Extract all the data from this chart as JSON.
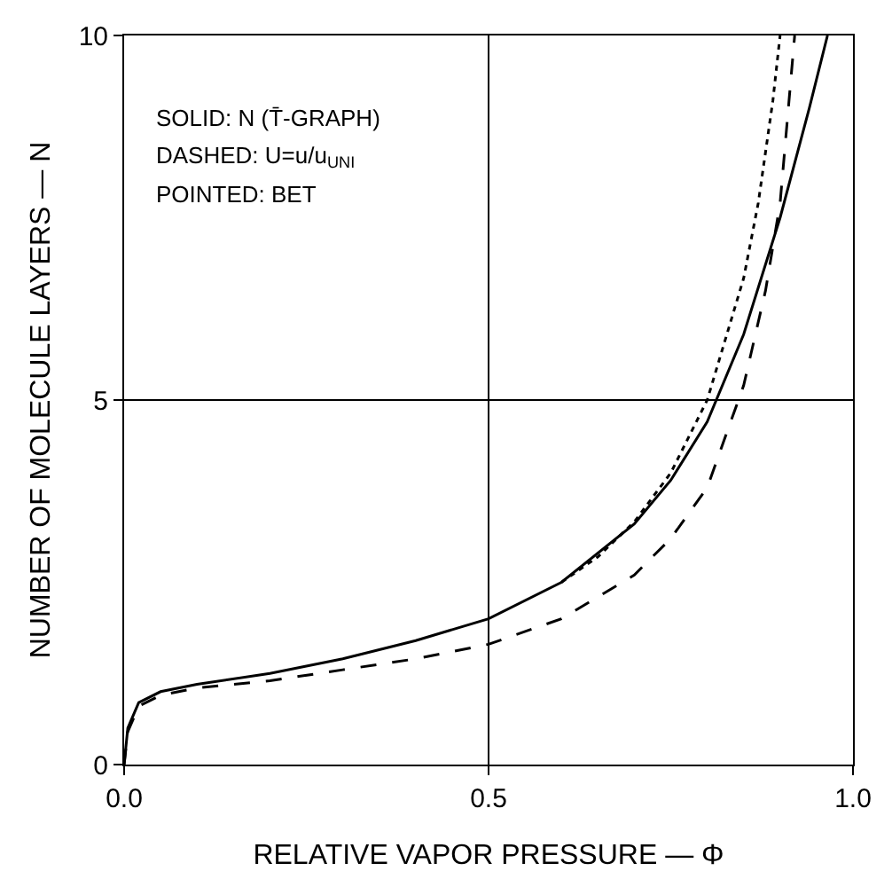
{
  "chart_data": {
    "type": "line",
    "xlabel": "RELATIVE VAPOR PRESSURE — Φ",
    "ylabel": "NUMBER OF MOLECULE LAYERS — N",
    "annotations": [
      "SOLID: N (T̄-GRAPH)",
      "DASHED: U=u/u$_{UNI}$",
      "POINTED: BET"
    ],
    "xlim": [
      0,
      1
    ],
    "ylim": [
      0,
      10
    ],
    "xticks": [
      {
        "value": 0,
        "label": "0.0"
      },
      {
        "value": 0.5,
        "label": "0.5"
      },
      {
        "value": 1,
        "label": "1.0"
      }
    ],
    "yticks": [
      0,
      5,
      10
    ],
    "grid": true,
    "marker": "none",
    "series": [
      {
        "color": "#000000",
        "line_style": "solid",
        "x": [
          0,
          0.005,
          0.02,
          0.05,
          0.1,
          0.2,
          0.3,
          0.4,
          0.5,
          0.6,
          0.7,
          0.75,
          0.8,
          0.85,
          0.9,
          0.94,
          0.965
        ],
        "values": [
          0,
          0.5,
          0.85,
          1.0,
          1.1,
          1.25,
          1.45,
          1.7,
          2.0,
          2.5,
          3.3,
          3.9,
          4.7,
          5.9,
          7.5,
          9.0,
          10
        ]
      },
      {
        "color": "#000000",
        "line_style": "dashed",
        "x": [
          0,
          0.005,
          0.02,
          0.05,
          0.1,
          0.2,
          0.3,
          0.4,
          0.5,
          0.6,
          0.7,
          0.75,
          0.8,
          0.85,
          0.88,
          0.9,
          0.92
        ],
        "values": [
          0,
          0.45,
          0.8,
          0.95,
          1.05,
          1.15,
          1.3,
          1.45,
          1.65,
          2.0,
          2.6,
          3.1,
          3.8,
          5.2,
          6.5,
          7.7,
          10
        ]
      },
      {
        "color": "#000000",
        "line_style": "dotted",
        "x": [
          0.6,
          0.65,
          0.7,
          0.75,
          0.8,
          0.85,
          0.87,
          0.89,
          0.9
        ],
        "values": [
          2.5,
          2.85,
          3.33,
          4.0,
          5.0,
          6.67,
          7.7,
          9.1,
          10
        ]
      }
    ]
  }
}
